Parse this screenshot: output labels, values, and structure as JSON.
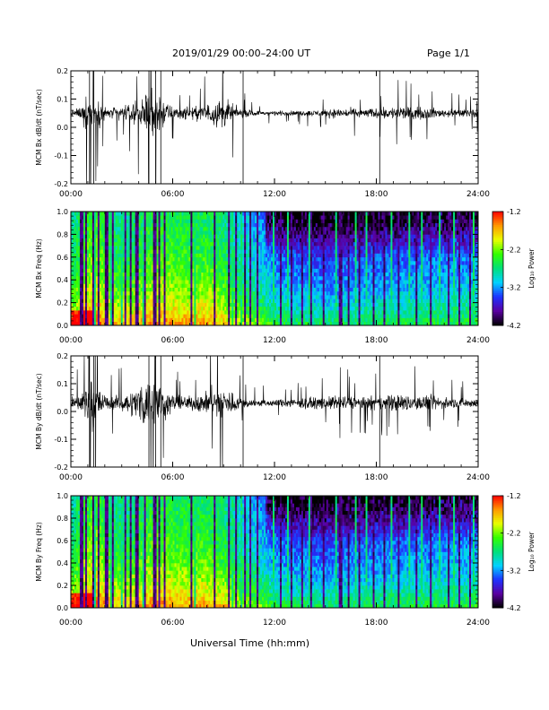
{
  "header": {
    "title": "2019/01/29  00:00–24:00 UT",
    "page": "Page 1/1"
  },
  "footer": {
    "xlabel": "Universal Time (hh:mm)"
  },
  "colors": {
    "trace": "#000000",
    "background": "#ffffff",
    "colormap": [
      "#000000",
      "#5a00a0",
      "#1e32ff",
      "#00d2ff",
      "#00e07a",
      "#33ff00",
      "#e8ff00",
      "#ff9900",
      "#ff0000"
    ]
  },
  "chart_data": [
    {
      "type": "line",
      "id": "bx-timeseries",
      "ylabel": "MCM Bx dB/dt (nT/sec)",
      "xlim": [
        0,
        24
      ],
      "x_ticks": [
        "00:00",
        "06:00",
        "12:00",
        "18:00",
        "24:00"
      ],
      "ylim": [
        -0.2,
        0.2
      ],
      "y_ticks": [
        "0.2",
        "0.1",
        "0.0",
        "-0.1",
        "-0.2"
      ],
      "baseline": 0.05,
      "series": [
        {
          "x": [
            0,
            0.6,
            1.1,
            1.4,
            1.8,
            2.2,
            2.6,
            3.3,
            3.9,
            4.2,
            4.6,
            4.9,
            5.2,
            5.5,
            5.9,
            6.3,
            7.2,
            7.9,
            8.3,
            8.9,
            9.3,
            9.9,
            10.4,
            11.0,
            12.0,
            13.5,
            15.0,
            15.5,
            16.5,
            17.3,
            18.0,
            18.8,
            19.5,
            20.3,
            21.0,
            21.4,
            22.0,
            23.0,
            24.0
          ],
          "amplitude": [
            0.03,
            0.05,
            0.2,
            0.2,
            0.08,
            0.04,
            0.05,
            0.06,
            0.1,
            0.15,
            0.2,
            0.2,
            0.2,
            0.12,
            0.06,
            0.05,
            0.05,
            0.07,
            0.1,
            0.12,
            0.1,
            0.04,
            0.03,
            0.02,
            0.02,
            0.02,
            0.03,
            0.04,
            0.04,
            0.035,
            0.04,
            0.05,
            0.06,
            0.045,
            0.05,
            0.04,
            0.035,
            0.03,
            0.03
          ]
        }
      ]
    },
    {
      "type": "heatmap",
      "id": "bx-spectrogram",
      "ylabel": "MCM Bx Freq (Hz)",
      "xlim": [
        0,
        24
      ],
      "x_ticks": [
        "00:00",
        "06:00",
        "12:00",
        "18:00",
        "24:00"
      ],
      "ylim": [
        0.0,
        1.0
      ],
      "y_ticks": [
        "1.0",
        "0.8",
        "0.6",
        "0.4",
        "0.2",
        "0.0"
      ],
      "colorbar": {
        "label": "Log₁₀ Power",
        "range": [
          -4.2,
          -1.2
        ],
        "ticks": [
          "-1.2",
          "-2.2",
          "-3.2",
          "-4.2"
        ]
      }
    },
    {
      "type": "line",
      "id": "by-timeseries",
      "ylabel": "MCM By dB/dt (nT/sec)",
      "xlim": [
        0,
        24
      ],
      "x_ticks": [
        "00:00",
        "06:00",
        "12:00",
        "18:00",
        "24:00"
      ],
      "ylim": [
        -0.2,
        0.2
      ],
      "y_ticks": [
        "0.2",
        "0.1",
        "0.0",
        "-0.1",
        "-0.2"
      ],
      "baseline": 0.03,
      "series": [
        {
          "x": [
            0,
            0.6,
            1.1,
            1.4,
            1.8,
            2.2,
            2.6,
            3.3,
            3.9,
            4.2,
            4.6,
            4.9,
            5.2,
            5.5,
            5.9,
            6.3,
            7.2,
            7.9,
            8.3,
            8.9,
            9.3,
            9.9,
            10.4,
            11.0,
            12.0,
            13.5,
            15.0,
            15.5,
            16.5,
            17.3,
            18.0,
            18.8,
            19.5,
            20.3,
            21.0,
            21.4,
            22.0,
            23.0,
            24.0
          ],
          "amplitude": [
            0.05,
            0.06,
            0.2,
            0.2,
            0.1,
            0.05,
            0.06,
            0.08,
            0.14,
            0.2,
            0.2,
            0.2,
            0.2,
            0.15,
            0.08,
            0.06,
            0.06,
            0.09,
            0.12,
            0.14,
            0.12,
            0.05,
            0.04,
            0.03,
            0.03,
            0.04,
            0.05,
            0.06,
            0.06,
            0.05,
            0.06,
            0.07,
            0.08,
            0.06,
            0.07,
            0.06,
            0.05,
            0.04,
            0.04
          ]
        }
      ]
    },
    {
      "type": "heatmap",
      "id": "by-spectrogram",
      "ylabel": "MCM By Freq (Hz)",
      "xlim": [
        0,
        24
      ],
      "x_ticks": [
        "00:00",
        "06:00",
        "12:00",
        "18:00",
        "24:00"
      ],
      "ylim": [
        0.0,
        1.0
      ],
      "y_ticks": [
        "1.0",
        "0.8",
        "0.6",
        "0.4",
        "0.2",
        "0.0"
      ],
      "colorbar": {
        "label": "Log₁₀ Power",
        "range": [
          -4.2,
          -1.2
        ],
        "ticks": [
          "-1.2",
          "-2.2",
          "-3.2",
          "-4.2"
        ]
      }
    }
  ]
}
